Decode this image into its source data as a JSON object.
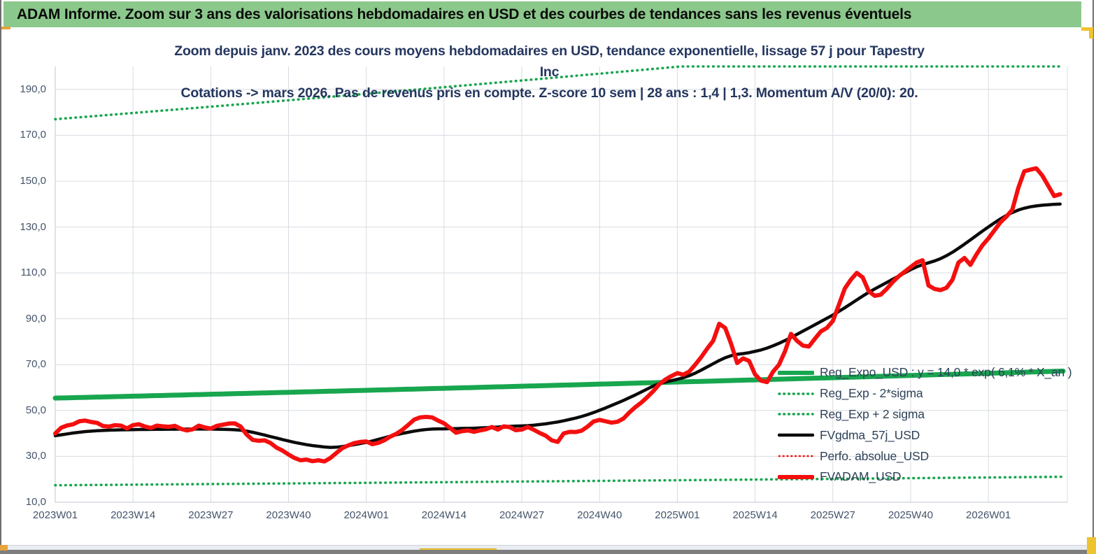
{
  "window": {
    "banner_title": "ADAM Informe. Zoom sur 3 ans des valorisations hebdomadaires en USD et des courbes de tendances sans les revenus éventuels"
  },
  "chart": {
    "title_line1": "Zoom depuis janv. 2023 des cours moyens hebdomadaires en USD, tendance exponentielle, lissage 57 j pour Tapestry Inc",
    "title_line2": "Cotations -> mars 2026. Pas de revenus pris en compte. Z-score 10 sem | 28 ans : 1,4 | 1,3. Momentum A/V (20/0): 20.",
    "legend": {
      "position": "right-middle",
      "entries": [
        {
          "label": "Reg_Expo_USD : y = 14,0 * exp( 6,1% * X_an )",
          "swatch": "green-solid"
        },
        {
          "label": "Reg_Exp - 2*sigma",
          "swatch": "green-dot"
        },
        {
          "label": "Reg_Exp + 2 sigma",
          "swatch": "green-dot"
        },
        {
          "label": "FVgdma_57j_USD",
          "swatch": "black-solid"
        },
        {
          "label": "Perfo. absolue_USD",
          "swatch": "red-dot"
        },
        {
          "label": "FVADAM_USD",
          "swatch": "red-solid"
        }
      ]
    }
  },
  "colors": {
    "banner_bg": "#8bc88b",
    "trend_green": "#18a64f",
    "black_line": "#0b0b0b",
    "red_line": "#f40f0f",
    "title_navy": "#24365f",
    "axis_label": "#44546a",
    "gridline": "#d8dce1",
    "axis_line": "#bfc5cc"
  },
  "chart_data": {
    "type": "line",
    "x_unit": "ISO week, weekly points from 2023W01 to ~2026W13",
    "x_tick_labels": [
      "2023W01",
      "2023W14",
      "2023W27",
      "2023W40",
      "2024W01",
      "2024W14",
      "2024W27",
      "2024W40",
      "2025W01",
      "2025W14",
      "2025W27",
      "2025W40",
      "2026W01"
    ],
    "x_tick_weeks": [
      0,
      13,
      26,
      39,
      52,
      65,
      78,
      91,
      104,
      117,
      130,
      143,
      156
    ],
    "xlim_weeks": [
      0,
      169.2
    ],
    "y_ticks": [
      10,
      30,
      50,
      70,
      90,
      110,
      130,
      150,
      170,
      190
    ],
    "y_tick_labels": [
      "10,0",
      "30,0",
      "50,0",
      "70,0",
      "90,0",
      "110,0",
      "130,0",
      "150,0",
      "170,0",
      "190,0"
    ],
    "ylim": [
      10,
      200
    ],
    "grid": true,
    "legend_position": "right-middle",
    "series": [
      {
        "name": "Reg_Expo_USD : y = 14,0 * exp( 6,1% * X_an )",
        "color": "#18a64f",
        "style": "solid",
        "width": 7,
        "model": "exponential",
        "start": 55.4,
        "end": 67.2
      },
      {
        "name": "Reg_Exp - 2*sigma",
        "color": "#18a64f",
        "style": "dot",
        "width": 3.6,
        "model": "exponential",
        "start": 17.4,
        "end": 21.1
      },
      {
        "name": "Reg_Exp + 2 sigma",
        "color": "#18a64f",
        "style": "dot",
        "width": 3.6,
        "model": "exponential",
        "start": 177.0,
        "end": 215.5,
        "clip_max": 200
      },
      {
        "name": "FVgdma_57j_USD",
        "color": "#0b0b0b",
        "style": "solid",
        "width": 4.5,
        "values": [
          39.0,
          39.4,
          39.8,
          40.2,
          40.5,
          40.8,
          41.0,
          41.2,
          41.3,
          41.4,
          41.5,
          41.55,
          41.6,
          41.65,
          41.7,
          41.72,
          41.75,
          41.78,
          41.8,
          41.82,
          41.85,
          41.88,
          41.9,
          41.9,
          41.9,
          41.9,
          41.9,
          41.85,
          41.8,
          41.7,
          41.6,
          41.4,
          41.0,
          40.5,
          39.9,
          39.3,
          38.6,
          38.0,
          37.3,
          36.7,
          36.1,
          35.6,
          35.1,
          34.7,
          34.4,
          34.1,
          33.9,
          34.0,
          34.3,
          34.7,
          35.1,
          35.6,
          36.1,
          36.7,
          37.4,
          38.1,
          38.8,
          39.4,
          40.0,
          40.5,
          41.0,
          41.4,
          41.7,
          41.9,
          42.0,
          42.0,
          42.1,
          42.1,
          42.2,
          42.2,
          42.3,
          42.4,
          42.5,
          42.7,
          42.8,
          43.0,
          43.1,
          43.2,
          43.3,
          43.4,
          43.6,
          43.9,
          44.2,
          44.6,
          45.0,
          45.5,
          46.1,
          46.7,
          47.4,
          48.2,
          49.1,
          50.1,
          51.1,
          52.2,
          53.3,
          54.4,
          55.6,
          56.8,
          58.1,
          59.4,
          60.7,
          61.7,
          62.4,
          63.0,
          63.6,
          64.3,
          65.2,
          66.3,
          67.6,
          69.0,
          70.4,
          71.8,
          73.0,
          73.9,
          74.5,
          74.8,
          75.2,
          75.8,
          76.4,
          77.2,
          78.2,
          79.3,
          80.5,
          81.8,
          83.2,
          84.6,
          86.0,
          87.4,
          88.8,
          90.2,
          91.6,
          93.2,
          94.8,
          96.5,
          98.2,
          99.9,
          101.5,
          103.0,
          104.4,
          105.8,
          107.2,
          108.6,
          110.0,
          111.4,
          112.6,
          113.6,
          114.4,
          115.2,
          116.2,
          117.5,
          119.0,
          120.7,
          122.5,
          124.4,
          126.3,
          128.2,
          130.0,
          131.8,
          133.5,
          135.0,
          136.3,
          137.4,
          138.2,
          138.8,
          139.2,
          139.5,
          139.7,
          139.9,
          140.0
        ]
      },
      {
        "name": "Perfo. absolue_USD",
        "color": "#f40f0f",
        "style": "dot",
        "width": 2.6,
        "values_ref": "FVADAM_USD",
        "note": "hidden beneath FVADAM_USD (identical path)"
      },
      {
        "name": "FVADAM_USD",
        "color": "#f40f0f",
        "style": "solid",
        "width": 6,
        "values": [
          40.0,
          42.5,
          43.5,
          44.0,
          45.3,
          45.6,
          45.0,
          44.6,
          43.2,
          43.0,
          43.6,
          43.4,
          42.2,
          43.6,
          44.0,
          43.0,
          42.4,
          43.4,
          43.1,
          42.9,
          43.3,
          42.0,
          41.3,
          41.8,
          43.4,
          42.6,
          42.1,
          43.3,
          43.8,
          44.3,
          44.4,
          43.0,
          39.5,
          37.2,
          36.8,
          37.0,
          35.8,
          33.8,
          32.5,
          30.8,
          29.3,
          28.3,
          28.6,
          27.9,
          28.3,
          27.8,
          29.3,
          31.5,
          33.6,
          34.8,
          35.8,
          36.3,
          36.5,
          35.3,
          35.9,
          37.0,
          38.6,
          39.8,
          41.5,
          43.7,
          46.0,
          47.0,
          47.2,
          47.0,
          45.6,
          44.4,
          42.4,
          40.3,
          41.0,
          41.3,
          40.7,
          41.3,
          41.8,
          42.8,
          41.7,
          43.1,
          42.7,
          41.4,
          41.7,
          42.8,
          41.6,
          40.2,
          39.0,
          37.0,
          36.3,
          40.0,
          40.7,
          40.6,
          41.2,
          43.0,
          45.2,
          45.9,
          45.3,
          44.7,
          45.1,
          46.5,
          49.2,
          51.5,
          53.5,
          55.9,
          58.5,
          61.5,
          63.5,
          65.0,
          66.3,
          65.6,
          67.0,
          70.0,
          73.3,
          77.0,
          80.4,
          87.8,
          86.0,
          79.0,
          70.7,
          72.7,
          71.6,
          65.7,
          63.0,
          62.4,
          66.9,
          70.0,
          75.8,
          83.4,
          80.4,
          78.3,
          77.9,
          81.3,
          84.5,
          86.0,
          89.0,
          96.0,
          103.2,
          107.0,
          110.0,
          108.0,
          102.0,
          100.0,
          100.5,
          103.0,
          106.0,
          108.5,
          110.5,
          112.5,
          114.5,
          115.5,
          104.5,
          103.0,
          102.5,
          103.5,
          107.0,
          114.5,
          116.5,
          113.5,
          118.0,
          122.0,
          125.0,
          128.5,
          132.0,
          134.5,
          137.5,
          147.0,
          154.3,
          155.0,
          155.6,
          152.5,
          148.0,
          143.5,
          144.3
        ]
      }
    ]
  }
}
